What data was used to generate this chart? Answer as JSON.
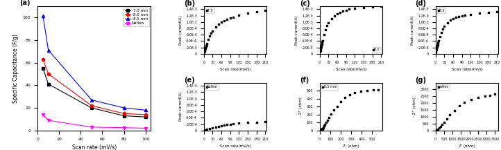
{
  "panel_a": {
    "scan_rates": [
      5,
      10,
      50,
      80,
      100
    ],
    "series": [
      {
        "label": "-7.0 mm",
        "color": "black",
        "marker": "s",
        "values": [
          55,
          41,
          20,
          13,
          12
        ]
      },
      {
        "label": "-8.0 mm",
        "color": "red",
        "marker": "o",
        "values": [
          63,
          50,
          22,
          15,
          14
        ]
      },
      {
        "label": "-8.5 mm",
        "color": "blue",
        "marker": "^",
        "values": [
          101,
          71,
          27,
          20,
          18
        ]
      },
      {
        "label": "Nafion",
        "color": "magenta",
        "marker": "v",
        "values": [
          14,
          9,
          3,
          2.5,
          2
        ]
      }
    ],
    "xlabel": "Scan rate (mV/s)",
    "ylabel": "Specific Capacitance (F/g)",
    "xlim": [
      0,
      105
    ],
    "ylim": [
      0,
      110
    ],
    "xticks": [
      0,
      20,
      40,
      60,
      80,
      100
    ],
    "yticks": [
      0,
      20,
      40,
      60,
      80,
      100
    ]
  },
  "panel_b": {
    "label": "-7.5",
    "scan_rates": [
      1,
      2,
      3,
      4,
      5,
      6,
      7,
      8,
      9,
      10,
      15,
      20,
      25,
      30,
      40,
      50,
      60,
      70,
      80,
      90,
      100,
      120,
      150,
      180,
      210
    ],
    "peak_currents": [
      5e-05,
      8e-05,
      0.00011,
      0.00014,
      0.00017,
      0.0002,
      0.00023,
      0.00026,
      0.00029,
      0.00032,
      0.00045,
      0.00056,
      0.00065,
      0.00072,
      0.00084,
      0.00092,
      0.001,
      0.00104,
      0.00108,
      0.00112,
      0.00115,
      0.00122,
      0.00128,
      0.00133,
      0.00137
    ],
    "xlabel": "Scan rate(mV/s)",
    "ylabel": "Peak current(A)",
    "xlim": [
      0,
      215
    ],
    "ylim": [
      0,
      0.0015
    ],
    "ytick_labels": [
      "0",
      "2.0E-4",
      "4.0E-4",
      "6.0E-4",
      "8.0E-4",
      "1.0E-3",
      "1.2E-3",
      "1.4E-3"
    ]
  },
  "panel_c": {
    "label": "-8.0",
    "scan_rates": [
      1,
      2,
      3,
      4,
      5,
      6,
      7,
      8,
      9,
      10,
      15,
      20,
      25,
      30,
      40,
      50,
      60,
      70,
      80,
      90,
      100,
      120,
      150,
      180,
      210
    ],
    "peak_currents": [
      6e-05,
      0.0001,
      0.00014,
      0.00018,
      0.00022,
      0.00026,
      0.0003,
      0.00034,
      0.00038,
      0.00042,
      0.0006,
      0.00075,
      0.00088,
      0.00098,
      0.0011,
      0.0012,
      0.00126,
      0.0013,
      0.00134,
      0.00137,
      0.0014,
      0.00143,
      0.00146,
      0.00148,
      0.0015
    ],
    "xlabel": "Scan rate(mV/s)",
    "ylabel": "Peak current(A)",
    "xlim": [
      0,
      215
    ],
    "ylim": [
      0,
      0.0015
    ],
    "ytick_labels": [
      "0",
      "2.0E-4",
      "4.0E-4",
      "6.0E-4",
      "8.0E-4",
      "1.0E-3",
      "1.2E-3",
      "1.4E-3"
    ]
  },
  "panel_d": {
    "label": "-8.5",
    "scan_rates": [
      1,
      2,
      3,
      4,
      5,
      6,
      7,
      8,
      9,
      10,
      15,
      20,
      25,
      30,
      40,
      50,
      60,
      70,
      80,
      90,
      100,
      120,
      150,
      180,
      210
    ],
    "peak_currents": [
      5e-05,
      9e-05,
      0.00013,
      0.00017,
      0.00021,
      0.00025,
      0.00029,
      0.00033,
      0.00037,
      0.0004,
      0.00055,
      0.00068,
      0.00078,
      0.00086,
      0.00098,
      0.00106,
      0.0011,
      0.00114,
      0.00117,
      0.00119,
      0.00121,
      0.00124,
      0.00127,
      0.00129,
      0.00131
    ],
    "xlabel": "Scan rate(mV/s)",
    "ylabel": "Peak current(A)",
    "xlim": [
      0,
      215
    ],
    "ylim": [
      0,
      0.0015
    ],
    "ytick_labels": [
      "0",
      "2.0E-4",
      "4.0E-4",
      "6.0E-4",
      "8.0E-4",
      "1.0E-3",
      "1.2E-3",
      "1.4E-3"
    ]
  },
  "panel_e": {
    "label": "Nafion",
    "scan_rates": [
      5,
      10,
      20,
      30,
      40,
      50,
      60,
      70,
      80,
      90,
      100,
      120,
      150,
      180,
      210
    ],
    "peak_currents": [
      2e-05,
      3.5e-05,
      6e-05,
      8e-05,
      0.0001,
      0.00012,
      0.00014,
      0.00016,
      0.00018,
      0.000195,
      0.00021,
      0.00023,
      0.00025,
      0.000265,
      0.000275
    ],
    "xlabel": "Scan rate(mV/s)",
    "ylabel": "Peak current(A)",
    "xlim": [
      0,
      215
    ],
    "ylim": [
      0,
      0.0015
    ],
    "ytick_labels": [
      "0",
      "2.0E-4",
      "4.0E-4",
      "6.0E-4",
      "8.0E-4",
      "1.0E-3",
      "1.2E-3",
      "1.4E-3"
    ]
  },
  "panel_f": {
    "label": "-8.5 mm",
    "z_real": [
      2,
      4,
      5,
      6,
      7,
      8,
      9,
      10,
      11,
      12,
      13,
      14,
      15,
      16,
      17,
      18,
      19,
      20,
      22,
      25,
      28,
      32,
      36,
      42,
      50,
      60,
      75,
      90,
      110,
      135,
      165,
      200,
      240,
      285,
      335,
      390,
      450,
      510,
      560
    ],
    "z_imag": [
      1,
      1.5,
      2,
      2.5,
      3,
      3.5,
      4,
      4.5,
      5,
      5.5,
      6,
      6.5,
      7,
      8,
      9,
      10,
      11,
      13,
      16,
      20,
      26,
      33,
      43,
      57,
      75,
      98,
      130,
      165,
      205,
      255,
      305,
      360,
      410,
      450,
      475,
      490,
      500,
      505,
      510
    ],
    "xlabel": "Z' (ohm)",
    "ylabel": "- Z'' (ohm)",
    "xlim": [
      0,
      600
    ],
    "ylim": [
      0,
      600
    ],
    "xticks": [
      0,
      100,
      200,
      300,
      400,
      500
    ],
    "yticks": [
      0,
      100,
      200,
      300,
      400,
      500
    ]
  },
  "panel_g": {
    "label": "nafion",
    "z_real": [
      10,
      20,
      30,
      50,
      70,
      100,
      150,
      200,
      280,
      380,
      500,
      650,
      850,
      1100,
      1400,
      1700,
      2100,
      2500,
      2900,
      3200,
      3500
    ],
    "z_imag": [
      5,
      10,
      15,
      25,
      40,
      65,
      110,
      180,
      290,
      430,
      620,
      870,
      1150,
      1450,
      1800,
      2050,
      2250,
      2400,
      2500,
      2580,
      2650
    ],
    "xlabel": "Z' (ohm)",
    "ylabel": "- Z'' (ohm)",
    "xlim": [
      0,
      3700
    ],
    "ylim": [
      0,
      3500
    ],
    "xticks": [
      0,
      500,
      1000,
      1500,
      2000,
      2500,
      3000,
      3500
    ],
    "yticks": [
      0,
      500,
      1000,
      1500,
      2000,
      2500,
      3000
    ]
  }
}
